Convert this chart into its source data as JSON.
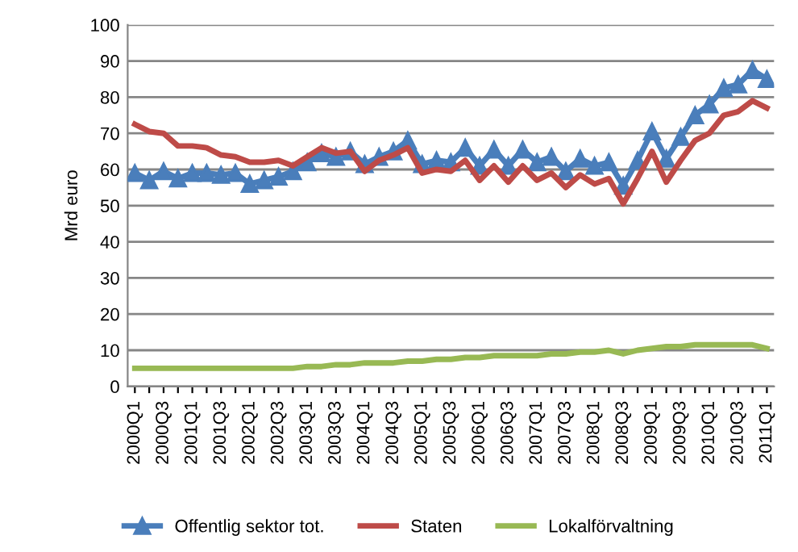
{
  "chart_data": {
    "type": "line",
    "ylabel": "Mrd euro",
    "categories": [
      "2000Q1",
      null,
      "2000Q3",
      null,
      "2001Q1",
      null,
      "2001Q3",
      null,
      "2002Q1",
      null,
      "2002Q3",
      null,
      "2003Q1",
      null,
      "2003Q3",
      null,
      "2004Q1",
      null,
      "2004Q3",
      null,
      "2005Q1",
      null,
      "2005Q3",
      null,
      "2006Q1",
      null,
      "2006Q3",
      null,
      "2007Q1",
      null,
      "2007Q3",
      null,
      "2008Q1",
      null,
      "2008Q3",
      null,
      "2009Q1",
      null,
      "2009Q3",
      null,
      "2010Q1",
      null,
      "2010Q3",
      null,
      "2011Q1"
    ],
    "series": [
      {
        "name": "Offentlig sektor tot.",
        "color": "#4a7ebb",
        "marker": "triangle",
        "values": [
          59,
          57,
          59.5,
          57.5,
          59,
          59,
          58.5,
          59,
          56,
          57,
          58,
          59.5,
          62,
          64.5,
          63.5,
          65,
          61.5,
          63.5,
          65,
          68,
          61.5,
          62.5,
          62,
          66,
          61,
          65.5,
          61,
          65.5,
          62,
          63.5,
          59.5,
          63,
          61,
          62,
          55.5,
          62.5,
          70.5,
          63,
          69,
          75,
          78,
          82.5,
          83.5,
          87.5,
          85
        ]
      },
      {
        "name": "Staten",
        "color": "#be4b48",
        "marker": "none",
        "values": [
          72.5,
          70.5,
          70,
          66.5,
          66.5,
          66,
          64,
          63.5,
          62,
          62,
          62.5,
          61,
          63.5,
          66,
          64.5,
          65,
          59.5,
          62.5,
          64,
          66,
          59,
          60,
          59.5,
          62.5,
          57,
          61,
          56.5,
          61,
          57,
          59,
          55,
          58.5,
          56,
          57.5,
          50.5,
          57.5,
          65,
          56.5,
          62.5,
          68,
          70,
          75,
          76,
          79,
          77
        ]
      },
      {
        "name": "Lokalförvaltning",
        "color": "#98b954",
        "marker": "none",
        "values": [
          5,
          5,
          5,
          5,
          5,
          5,
          5,
          5,
          5,
          5,
          5,
          5,
          5.5,
          5.5,
          6,
          6,
          6.5,
          6.5,
          6.5,
          7,
          7,
          7.5,
          7.5,
          8,
          8,
          8.5,
          8.5,
          8.5,
          8.5,
          9,
          9,
          9.5,
          9.5,
          10,
          9,
          10,
          10.5,
          11,
          11,
          11.5,
          11.5,
          11.5,
          11.5,
          11.5,
          10.5
        ]
      }
    ],
    "ylim": [
      0,
      100
    ],
    "yticks": [
      0,
      10,
      20,
      30,
      40,
      50,
      60,
      70,
      80,
      90,
      100
    ],
    "grid": "y",
    "legend": "bottom",
    "line_style": "solid"
  }
}
